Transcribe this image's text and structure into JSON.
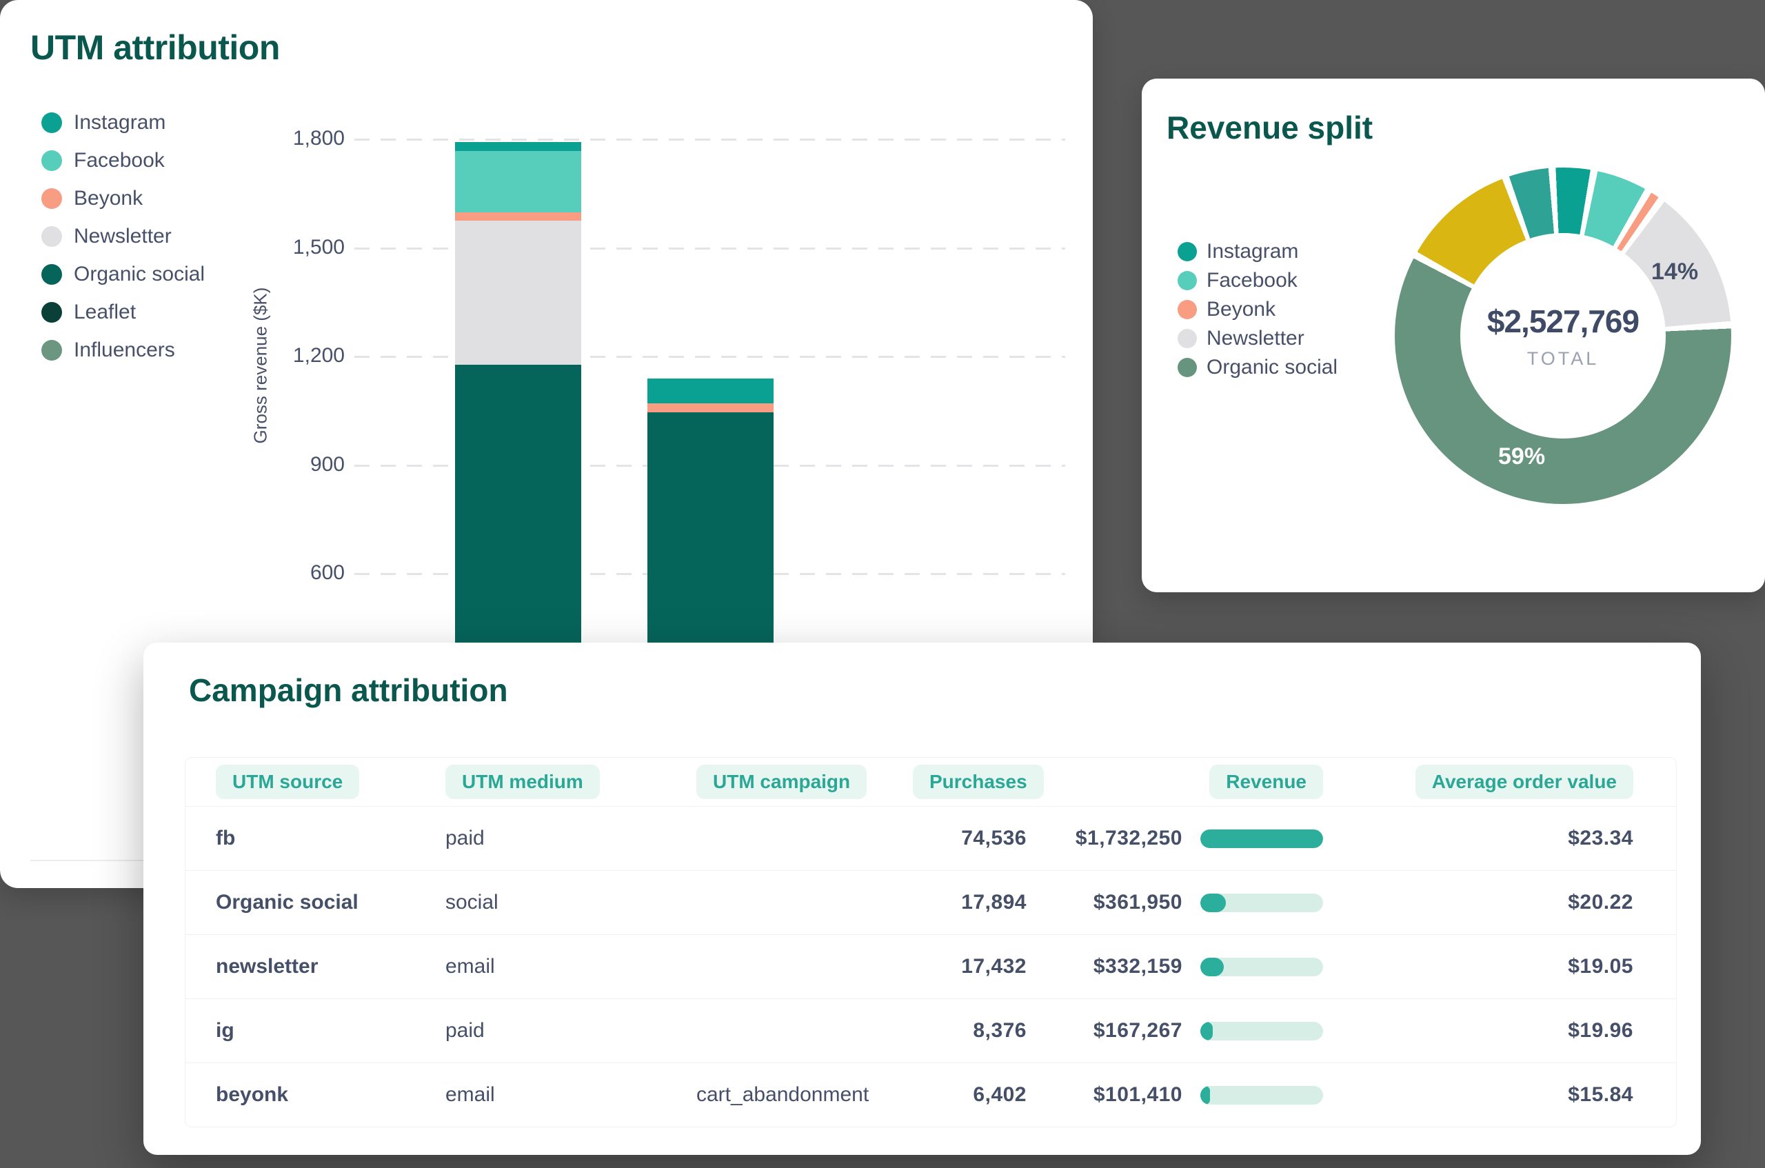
{
  "background_color": "#575757",
  "utm_card": {
    "title": "UTM attribution",
    "y_axis_label": "Gross revenue ($K)",
    "legend": [
      {
        "label": "Instagram",
        "color": "#0AA192"
      },
      {
        "label": "Facebook",
        "color": "#57CDBC"
      },
      {
        "label": "Beyonk",
        "color": "#F89C82"
      },
      {
        "label": "Newsletter",
        "color": "#E0E0E2"
      },
      {
        "label": "Organic social",
        "color": "#06655B"
      },
      {
        "label": "Leaflet",
        "color": "#0B4038"
      },
      {
        "label": "Influencers",
        "color": "#6B9781"
      }
    ]
  },
  "revenue_card": {
    "title": "Revenue split",
    "center_value": "$2,527,769",
    "center_label": "TOTAL",
    "callouts": {
      "newsletter": "14%",
      "organic": "59%"
    },
    "legend": [
      {
        "label": "Instagram",
        "color": "#0AA192"
      },
      {
        "label": "Facebook",
        "color": "#57CDBC"
      },
      {
        "label": "Beyonk",
        "color": "#F89C82"
      },
      {
        "label": "Newsletter",
        "color": "#E0E0E2"
      },
      {
        "label": "Organic social",
        "color": "#67947E"
      }
    ]
  },
  "campaign_card": {
    "title": "Campaign attribution",
    "columns": [
      "UTM source",
      "UTM medium",
      "UTM campaign",
      "Purchases",
      "Revenue",
      "Average order value"
    ],
    "accent_color": "#2BA795",
    "rows": [
      {
        "source": "fb",
        "medium": "paid",
        "campaign": "",
        "purchases": "74,536",
        "revenue": "$1,732,250",
        "revenue_bar_pct": 100,
        "aov": "$23.34"
      },
      {
        "source": "Organic social",
        "medium": "social",
        "campaign": "",
        "purchases": "17,894",
        "revenue": "$361,950",
        "revenue_bar_pct": 21,
        "aov": "$20.22"
      },
      {
        "source": "newsletter",
        "medium": "email",
        "campaign": "",
        "purchases": "17,432",
        "revenue": "$332,159",
        "revenue_bar_pct": 19,
        "aov": "$19.05"
      },
      {
        "source": "ig",
        "medium": "paid",
        "campaign": "",
        "purchases": "8,376",
        "revenue": "$167,267",
        "revenue_bar_pct": 10,
        "aov": "$19.96"
      },
      {
        "source": "beyonk",
        "medium": "email",
        "campaign": "cart_abandonment",
        "purchases": "6,402",
        "revenue": "$101,410",
        "revenue_bar_pct": 6,
        "aov": "$15.84"
      }
    ]
  },
  "chart_data": [
    {
      "type": "bar",
      "stacked": true,
      "title": "UTM attribution",
      "xlabel": "",
      "ylabel": "Gross revenue ($K)",
      "ylim": [
        0,
        1870
      ],
      "yticks": [
        600,
        900,
        1200,
        1500,
        1800
      ],
      "ytick_labels": [
        "600",
        "900",
        "1,200",
        "1,500",
        "1,800"
      ],
      "grid": "horizontal-dashed",
      "legend_position": "left",
      "categories": [
        "",
        ""
      ],
      "series": [
        {
          "name": "Instagram",
          "color": "#0AA192",
          "values": [
            25,
            69
          ]
        },
        {
          "name": "Facebook",
          "color": "#57CDBC",
          "values": [
            168,
            0
          ]
        },
        {
          "name": "Beyonk",
          "color": "#F89C82",
          "values": [
            23,
            25
          ]
        },
        {
          "name": "Newsletter",
          "color": "#E0E0E2",
          "values": [
            398,
            0
          ]
        },
        {
          "name": "Organic social",
          "color": "#06655B",
          "values": [
            1176,
            1044
          ]
        },
        {
          "name": "Leaflet",
          "color": "#0B4038",
          "values": [
            0,
            0
          ]
        },
        {
          "name": "Influencers",
          "color": "#6B9781",
          "values": [
            0,
            0
          ]
        }
      ],
      "totals": [
        1790,
        1138
      ]
    },
    {
      "type": "pie",
      "donut": true,
      "title": "Revenue split",
      "center_value": "$2,527,769",
      "center_label": "TOTAL",
      "legend_position": "left",
      "segments": [
        {
          "label": "Instagram",
          "pct": 4,
          "color": "#0AA192"
        },
        {
          "label": "Facebook",
          "pct": 5.5,
          "color": "#57CDBC"
        },
        {
          "label": "Beyonk",
          "pct": 1.5,
          "color": "#F89C82"
        },
        {
          "label": "Newsletter",
          "pct": 14,
          "color": "#E0E0E2",
          "data_label": "14%"
        },
        {
          "label": "Organic social",
          "pct": 59,
          "color": "#67947E",
          "data_label": "59%"
        },
        {
          "label": "",
          "pct": 11.5,
          "color": "#D9B612"
        },
        {
          "label": "",
          "pct": 4.5,
          "color": "#2EA395"
        }
      ]
    }
  ]
}
